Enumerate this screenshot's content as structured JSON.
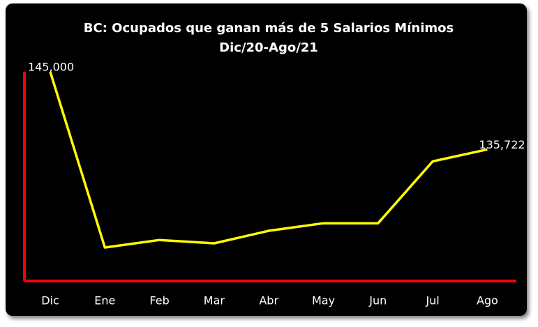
{
  "chart_data": {
    "type": "line",
    "title": "BC: Ocupados que ganan más de 5 Salarios Mínimos",
    "subtitle": "Dic/20-Ago/21",
    "categories": [
      "Dic",
      "Ene",
      "Feb",
      "Mar",
      "Abr",
      "May",
      "Jun",
      "Jul",
      "Ago"
    ],
    "values": [
      145000,
      124000,
      124900,
      124500,
      126000,
      126900,
      126900,
      134300,
      135722
    ],
    "value_labels": [
      "145,000",
      null,
      null,
      null,
      null,
      null,
      null,
      null,
      "135,722"
    ],
    "color": "#ffff00",
    "axis_color": "#ff0000",
    "ylim": [
      120000,
      145000
    ]
  }
}
